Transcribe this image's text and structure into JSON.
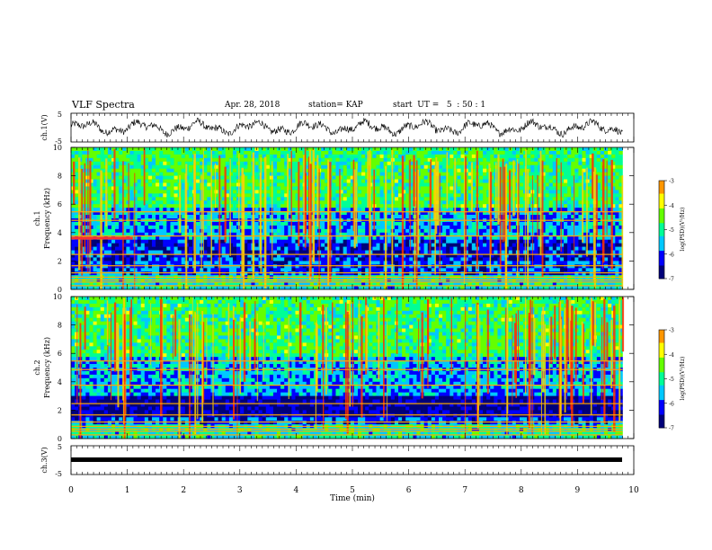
{
  "header": {
    "title": "VLF Spectra",
    "date": "Apr. 28, 2018",
    "station": "station= KAP",
    "start": "start  UT =   5  : 50 : 1"
  },
  "chart_data": [
    {
      "type": "line",
      "panel": "ch1-waveform",
      "ylabel": "ch.1(V)",
      "ylim": [
        -5,
        5
      ],
      "y_ticks": [
        "5",
        "-5"
      ],
      "xlim": [
        0,
        9.8
      ],
      "trace": "noisy waveform roughly between -2.5 and 2.5 V"
    },
    {
      "type": "heatmap",
      "panel": "ch1-spectrogram",
      "ylabel": "ch.1\nFrequency (kHz)",
      "ylabel_line1": "ch.1",
      "ylabel_line2": "Frequency (kHz)",
      "ylim": [
        0,
        10
      ],
      "y_ticks": [
        "0",
        "2",
        "4",
        "6",
        "8",
        "10"
      ],
      "xlim": [
        0,
        9.8
      ],
      "colorbar": {
        "label": "log(PSD)(V²/Hz)",
        "ticks": [
          "-3",
          "-4",
          "-5",
          "-6",
          "-7"
        ],
        "range": [
          -7,
          -3
        ]
      }
    },
    {
      "type": "heatmap",
      "panel": "ch2-spectrogram",
      "ylabel_line1": "ch.2",
      "ylabel_line2": "Frequency (kHz)",
      "ylim": [
        0,
        10
      ],
      "y_ticks": [
        "0",
        "2",
        "4",
        "6",
        "8",
        "10"
      ],
      "xlim": [
        0,
        9.8
      ],
      "colorbar": {
        "label": "log(PSD)(V²/Hz)",
        "ticks": [
          "-3",
          "-4",
          "-5",
          "-6",
          "-7"
        ],
        "range": [
          -7,
          -3
        ]
      }
    },
    {
      "type": "line",
      "panel": "ch3-waveform",
      "ylabel": "ch.3(V)",
      "ylim": [
        -5,
        5
      ],
      "y_ticks": [
        "5",
        "-5"
      ],
      "xlim": [
        0,
        9.8
      ],
      "trace": "flat near -1.5 V"
    }
  ],
  "x_axis": {
    "label": "Time (min)",
    "ticks": [
      "0",
      "1",
      "2",
      "3",
      "4",
      "5",
      "6",
      "7",
      "8",
      "9",
      "10"
    ],
    "range": [
      0,
      10
    ]
  },
  "colors": {
    "colormap": [
      "#00007a",
      "#0000ff",
      "#00c8ff",
      "#00ff96",
      "#64ff00",
      "#ffff00",
      "#ff9600",
      "#ff0000",
      "#ffffff"
    ]
  }
}
